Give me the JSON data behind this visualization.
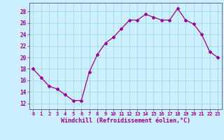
{
  "x": [
    0,
    1,
    2,
    3,
    4,
    5,
    6,
    7,
    8,
    9,
    10,
    11,
    12,
    13,
    14,
    15,
    16,
    17,
    18,
    19,
    20,
    21,
    22,
    23
  ],
  "y": [
    18,
    16.5,
    15,
    14.5,
    13.5,
    12.5,
    12.5,
    17.5,
    20.5,
    22.5,
    23.5,
    25,
    26.5,
    26.5,
    27.5,
    27,
    26.5,
    26.5,
    28.5,
    26.5,
    25.8,
    24,
    21,
    20
  ],
  "line_color": "#990099",
  "marker": "D",
  "marker_size": 2,
  "bg_color": "#cceeff",
  "grid_color": "#99dddd",
  "xlabel": "Windchill (Refroidissement éolien,°C)",
  "xlabel_color": "#990099",
  "tick_color": "#990099",
  "spine_color": "#666699",
  "ylim": [
    11,
    29.5
  ],
  "yticks": [
    12,
    14,
    16,
    18,
    20,
    22,
    24,
    26,
    28
  ],
  "xlim": [
    -0.5,
    23.5
  ],
  "xticks": [
    0,
    1,
    2,
    3,
    4,
    5,
    6,
    7,
    8,
    9,
    10,
    11,
    12,
    13,
    14,
    15,
    16,
    17,
    18,
    19,
    20,
    21,
    22,
    23
  ]
}
